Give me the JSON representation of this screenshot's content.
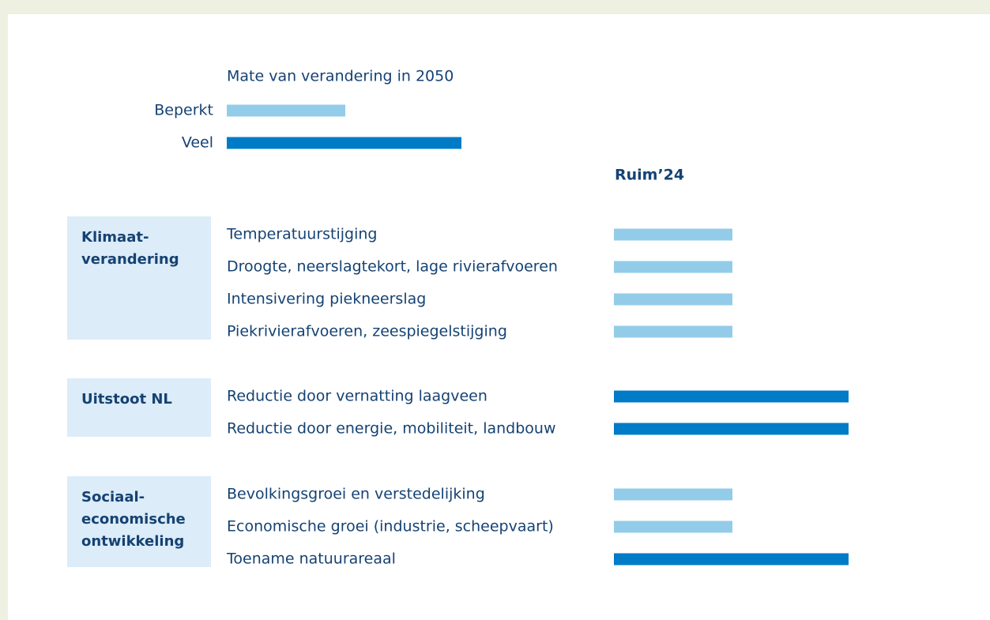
{
  "legend": {
    "title": "Mate van verandering in 2050",
    "items": [
      {
        "label": "Beperkt",
        "color": "#93cce8"
      },
      {
        "label": "Veel",
        "color": "#007bc7"
      }
    ]
  },
  "column_header": "Ruim’24",
  "groups": [
    {
      "label_lines": [
        "Klimaat-",
        "verandering"
      ],
      "items": [
        {
          "label": "Temperatuurstijging",
          "level": "Beperkt"
        },
        {
          "label": "Droogte, neerslagtekort, lage rivierafvoeren",
          "level": "Beperkt"
        },
        {
          "label": "Intensivering piekneerslag",
          "level": "Beperkt"
        },
        {
          "label": "Piekrivierafvoeren, zeespiegelstijging",
          "level": "Beperkt"
        }
      ]
    },
    {
      "label_lines": [
        "Uitstoot NL"
      ],
      "items": [
        {
          "label": "Reductie door vernatting laagveen",
          "level": "Veel"
        },
        {
          "label": "Reductie door energie, mobiliteit, landbouw",
          "level": "Veel"
        }
      ]
    },
    {
      "label_lines": [
        "Sociaal-",
        "economische",
        "ontwikkeling"
      ],
      "items": [
        {
          "label": "Bevolkingsgroei en verstedelijking",
          "level": "Beperkt"
        },
        {
          "label": "Economische groei (industrie, scheepvaart)",
          "level": "Beperkt"
        },
        {
          "label": "Toename natuurareaal",
          "level": "Veel"
        }
      ]
    }
  ]
}
